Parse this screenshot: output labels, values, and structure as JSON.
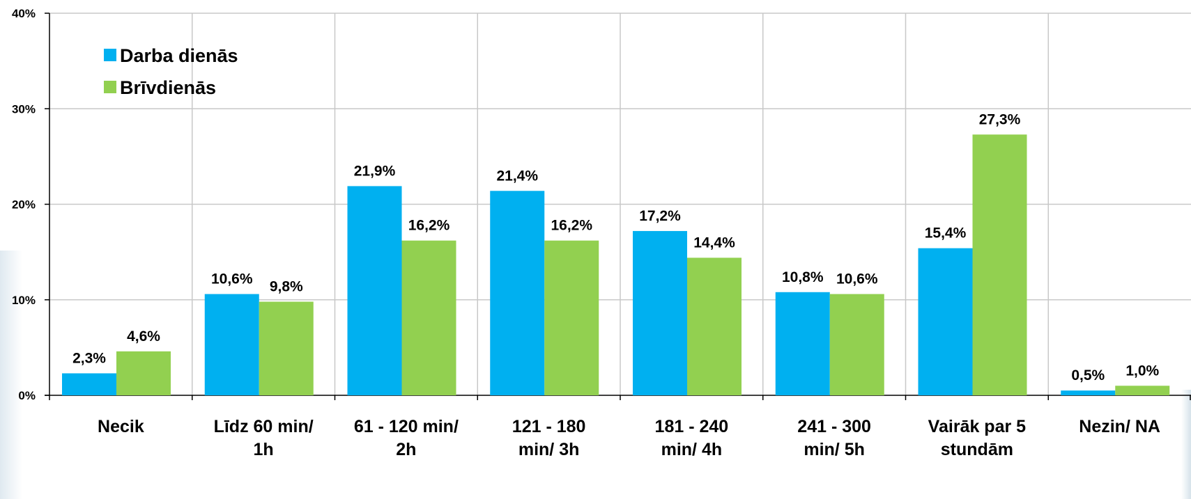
{
  "chart_data": {
    "type": "bar",
    "categories": [
      [
        "Necik"
      ],
      [
        "Līdz 60 min/",
        "1h"
      ],
      [
        "61 - 120 min/",
        "2h"
      ],
      [
        "121 - 180",
        "min/ 3h"
      ],
      [
        "181 - 240",
        "min/ 4h"
      ],
      [
        "241 - 300",
        "min/ 5h"
      ],
      [
        "Vairāk par 5",
        "stundām"
      ],
      [
        "Nezin/ NA"
      ]
    ],
    "series": [
      {
        "name": "Darba dienās",
        "color": "#00B0F0",
        "values": [
          2.3,
          10.6,
          21.9,
          21.4,
          17.2,
          10.8,
          15.4,
          0.5
        ],
        "labels": [
          "2,3%",
          "10,6%",
          "21,9%",
          "21,4%",
          "17,2%",
          "10,8%",
          "15,4%",
          "0,5%"
        ]
      },
      {
        "name": "Brīvdienās",
        "color": "#92D050",
        "values": [
          4.6,
          9.8,
          16.2,
          16.2,
          14.4,
          10.6,
          27.3,
          1.0
        ],
        "labels": [
          "4,6%",
          "9,8%",
          "16,2%",
          "16,2%",
          "14,4%",
          "10,6%",
          "27,3%",
          "1,0%"
        ]
      }
    ],
    "ylim": [
      0,
      40
    ],
    "yticks": [
      0,
      10,
      20,
      30,
      40
    ],
    "ytick_labels": [
      "0%",
      "10%",
      "20%",
      "30%",
      "40%"
    ],
    "grid": true,
    "legend": "top-left",
    "title": "",
    "xlabel": "",
    "ylabel": ""
  }
}
